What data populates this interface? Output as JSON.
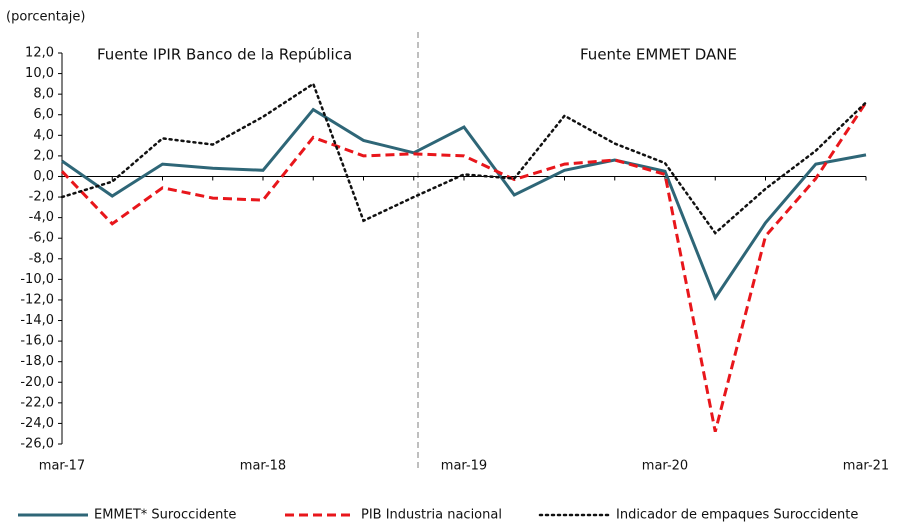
{
  "chart_data": {
    "type": "line",
    "y_axis_label": "(porcentaje)",
    "annotations": [
      "Fuente  IPIR Banco de la República",
      "Fuente  EMMET DANE"
    ],
    "categories": [
      "mar-17",
      null,
      null,
      null,
      "mar-18",
      null,
      null,
      null,
      "mar-19",
      null,
      null,
      null,
      "mar-20",
      null,
      null,
      null,
      "mar-21"
    ],
    "series": [
      {
        "name": "EMMET* Suroccidente",
        "color": "#2e6677",
        "dash": "solid",
        "values": [
          1.5,
          -1.9,
          1.2,
          0.8,
          0.6,
          6.5,
          3.5,
          2.3,
          4.8,
          -1.8,
          0.6,
          1.6,
          0.5,
          -11.8,
          -4.5,
          1.2,
          2.1
        ]
      },
      {
        "name": "PIB Industria nacional",
        "color": "#e8161b",
        "dash": "dashed",
        "values": [
          0.5,
          -4.6,
          -1.1,
          -2.1,
          -2.3,
          3.8,
          2.0,
          2.2,
          2.0,
          -0.3,
          1.2,
          1.6,
          0.2,
          -24.8,
          -5.8,
          -0.2,
          7.2
        ]
      },
      {
        "name": "Indicador de empaques Suroccidente",
        "color": "#111111",
        "dash": "dotted",
        "values": [
          -2.0,
          -0.5,
          3.7,
          3.1,
          5.8,
          9.0,
          -4.3,
          -2.0,
          0.2,
          -0.2,
          5.9,
          3.2,
          1.3,
          -5.5,
          -1.2,
          2.5,
          7.2
        ]
      }
    ],
    "ylim": [
      -26,
      12
    ],
    "yticks": [
      {
        "value": -26,
        "label": "-26,0"
      },
      {
        "value": -24,
        "label": "-24,0"
      },
      {
        "value": -22,
        "label": "-22,0"
      },
      {
        "value": -20,
        "label": "-20,0"
      },
      {
        "value": -18,
        "label": "-18,0"
      },
      {
        "value": -16,
        "label": "-16,0"
      },
      {
        "value": -14,
        "label": "-14,0"
      },
      {
        "value": -12,
        "label": "-12,0"
      },
      {
        "value": -10,
        "label": "-10,0"
      },
      {
        "value": -8,
        "label": "-8,0"
      },
      {
        "value": -6,
        "label": "-6,0"
      },
      {
        "value": -4,
        "label": "-4,0"
      },
      {
        "value": -2,
        "label": "-2,0"
      },
      {
        "value": 0,
        "label": "0,0"
      },
      {
        "value": 2,
        "label": "2,0"
      },
      {
        "value": 4,
        "label": "4,0"
      },
      {
        "value": 6,
        "label": "6,0"
      },
      {
        "value": 8,
        "label": "8,0"
      },
      {
        "value": 10,
        "label": "10,0"
      },
      {
        "value": 12,
        "label": "12,0"
      }
    ],
    "grid": false
  }
}
